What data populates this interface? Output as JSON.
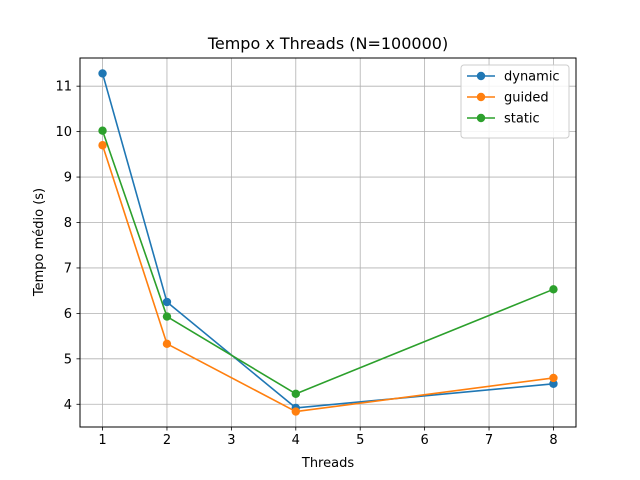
{
  "chart_data": {
    "type": "line",
    "title": "Tempo x Threads (N=100000)",
    "xlabel": "Threads",
    "ylabel": "Tempo médio (s)",
    "x": [
      1,
      2,
      4,
      8
    ],
    "xticks": [
      1,
      2,
      3,
      4,
      5,
      6,
      7,
      8
    ],
    "yticks": [
      4,
      5,
      6,
      7,
      8,
      9,
      10,
      11
    ],
    "xlim": [
      0.65,
      8.35
    ],
    "ylim": [
      3.5,
      11.62
    ],
    "grid": true,
    "legend_position": "top-right",
    "series": [
      {
        "name": "dynamic",
        "color": "#1f77b4",
        "values": [
          11.28,
          6.25,
          3.92,
          4.45
        ]
      },
      {
        "name": "guided",
        "color": "#ff7f0e",
        "values": [
          9.7,
          5.33,
          3.84,
          4.58
        ]
      },
      {
        "name": "static",
        "color": "#2ca02c",
        "values": [
          10.02,
          5.93,
          4.23,
          6.53
        ]
      }
    ]
  }
}
